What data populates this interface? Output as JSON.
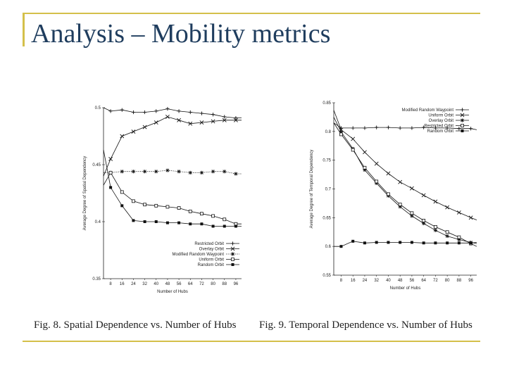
{
  "slide": {
    "title": "Analysis – Mobility metrics",
    "accent_color": "#d4c04a",
    "title_color": "#1f3d5e"
  },
  "captions": {
    "fig8": "Fig. 8.   Spatial Dependence vs. Number of Hubs",
    "fig9": "Fig. 9.   Temporal Dependence vs. Number of Hubs"
  },
  "chart_data": [
    {
      "type": "line",
      "xlabel": "Number of Hubs",
      "ylabel": "Average Degree of Spatial Dependency",
      "ylim": [
        0.35,
        0.5
      ],
      "xlim": [
        3,
        100
      ],
      "yticks": [
        0.35,
        0.4,
        0.45,
        0.5
      ],
      "ytick_labels": [
        "0.35",
        "0.4",
        "0.45",
        "0.5"
      ],
      "xticks": [
        8,
        16,
        24,
        32,
        40,
        48,
        56,
        64,
        72,
        80,
        88,
        96
      ],
      "grid": false,
      "legend_position": "bottom-right",
      "series": [
        {
          "name": "Restricted Orbit",
          "marker": "plus",
          "dash": "solid",
          "x": [
            3,
            8,
            16,
            24,
            32,
            40,
            48,
            56,
            64,
            72,
            80,
            88,
            96,
            100
          ],
          "y": [
            0.5,
            0.497,
            0.498,
            0.496,
            0.496,
            0.497,
            0.499,
            0.497,
            0.496,
            0.495,
            0.494,
            0.492,
            0.491,
            0.491
          ]
        },
        {
          "name": "Overlay Orbit",
          "marker": "cross",
          "dash": "solid",
          "x": [
            3,
            8,
            16,
            24,
            32,
            40,
            48,
            56,
            64,
            72,
            80,
            88,
            96,
            100
          ],
          "y": [
            0.44,
            0.455,
            0.475,
            0.479,
            0.483,
            0.487,
            0.492,
            0.489,
            0.486,
            0.487,
            0.488,
            0.489,
            0.489,
            0.489
          ]
        },
        {
          "name": "Modified Random Waypoint",
          "marker": "star",
          "dash": "dotted",
          "x": [
            3,
            8,
            16,
            24,
            32,
            40,
            48,
            56,
            64,
            72,
            80,
            88,
            96,
            100
          ],
          "y": [
            0.443,
            0.443,
            0.444,
            0.444,
            0.444,
            0.444,
            0.445,
            0.444,
            0.443,
            0.443,
            0.444,
            0.444,
            0.442,
            0.442
          ]
        },
        {
          "name": "Uniform Orbit",
          "marker": "square-open",
          "dash": "solid",
          "x": [
            3,
            8,
            16,
            24,
            32,
            40,
            48,
            56,
            64,
            72,
            80,
            88,
            96,
            100
          ],
          "y": [
            0.432,
            0.443,
            0.426,
            0.418,
            0.415,
            0.414,
            0.413,
            0.412,
            0.409,
            0.407,
            0.405,
            0.402,
            0.398,
            0.398
          ]
        },
        {
          "name": "Random Orbit",
          "marker": "square-filled",
          "dash": "solid",
          "x": [
            3,
            8,
            16,
            24,
            32,
            40,
            48,
            56,
            64,
            72,
            80,
            88,
            96,
            100
          ],
          "y": [
            0.463,
            0.43,
            0.414,
            0.401,
            0.4,
            0.4,
            0.399,
            0.399,
            0.398,
            0.398,
            0.396,
            0.396,
            0.396,
            0.396
          ]
        }
      ]
    },
    {
      "type": "line",
      "xlabel": "Number of Hubs",
      "ylabel": "Average Degree of Temporal Dependency",
      "ylim": [
        0.55,
        0.85
      ],
      "xlim": [
        3,
        100
      ],
      "yticks": [
        0.55,
        0.6,
        0.65,
        0.7,
        0.75,
        0.8,
        0.85
      ],
      "ytick_labels": [
        "0.55",
        "0.6",
        "0.65",
        "0.7",
        "0.75",
        "0.8",
        "0.85"
      ],
      "xticks": [
        8,
        16,
        24,
        32,
        40,
        48,
        56,
        64,
        72,
        80,
        88,
        96
      ],
      "grid": false,
      "legend_position": "top-right",
      "series": [
        {
          "name": "Modified Random Waypoint",
          "marker": "plus",
          "dash": "solid",
          "x": [
            3,
            8,
            16,
            24,
            32,
            40,
            48,
            56,
            64,
            72,
            80,
            88,
            96,
            100
          ],
          "y": [
            0.815,
            0.806,
            0.806,
            0.806,
            0.807,
            0.807,
            0.806,
            0.806,
            0.807,
            0.806,
            0.806,
            0.805,
            0.805,
            0.803
          ]
        },
        {
          "name": "Uniform Orbit",
          "marker": "cross",
          "dash": "solid",
          "x": [
            3,
            8,
            16,
            24,
            32,
            40,
            48,
            56,
            64,
            72,
            80,
            88,
            96,
            100
          ],
          "y": [
            0.837,
            0.803,
            0.787,
            0.764,
            0.744,
            0.727,
            0.712,
            0.701,
            0.689,
            0.678,
            0.668,
            0.659,
            0.65,
            0.646
          ]
        },
        {
          "name": "Overlay Orbit",
          "marker": "star",
          "dash": "solid",
          "x": [
            3,
            8,
            16,
            24,
            32,
            40,
            48,
            56,
            64,
            72,
            80,
            88,
            96,
            100
          ],
          "y": [
            0.825,
            0.799,
            0.77,
            0.733,
            0.71,
            0.688,
            0.669,
            0.653,
            0.64,
            0.628,
            0.618,
            0.612,
            0.607,
            0.605
          ]
        },
        {
          "name": "Restricted Orbit",
          "marker": "square-open",
          "dash": "solid",
          "x": [
            3,
            8,
            16,
            24,
            32,
            40,
            48,
            56,
            64,
            72,
            80,
            88,
            96,
            100
          ],
          "y": [
            0.815,
            0.795,
            0.768,
            0.737,
            0.713,
            0.691,
            0.673,
            0.658,
            0.645,
            0.634,
            0.625,
            0.616,
            0.605,
            0.6
          ]
        },
        {
          "name": "Random Orbit",
          "marker": "square-filled",
          "dash": "solid",
          "x": [
            3,
            8,
            16,
            24,
            32,
            40,
            48,
            56,
            64,
            72,
            80,
            88,
            96,
            100
          ],
          "y": [
            0.6,
            0.6,
            0.609,
            0.606,
            0.607,
            0.607,
            0.607,
            0.607,
            0.606,
            0.606,
            0.606,
            0.606,
            0.606,
            0.607
          ]
        }
      ]
    }
  ]
}
